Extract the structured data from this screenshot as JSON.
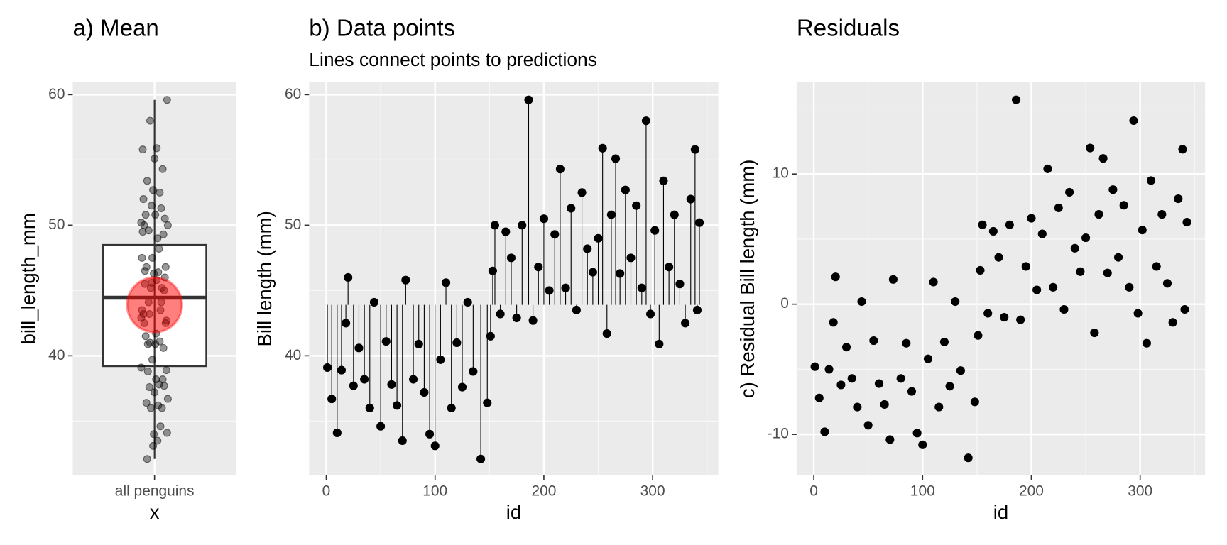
{
  "chart_data": [
    {
      "type": "box",
      "title": "a) Mean",
      "x_label": "x",
      "y_label": "bill_length_mm",
      "categories": [
        "all penguins"
      ],
      "values": [
        39.1,
        36.7,
        34.1,
        38.9,
        42.5,
        46.0,
        37.7,
        40.6,
        38.2,
        36.0,
        44.1,
        34.6,
        41.1,
        37.8,
        36.2,
        33.5,
        45.8,
        38.2,
        40.9,
        37.2,
        34.0,
        33.1,
        39.7,
        45.6,
        36.0,
        41.0,
        37.6,
        44.1,
        38.8,
        32.1,
        36.4,
        41.5,
        46.5,
        50.0,
        43.2,
        49.5,
        47.5,
        42.9,
        50.0,
        59.6,
        42.7,
        46.8,
        50.5,
        45.0,
        49.3,
        54.3,
        45.2,
        51.3,
        43.5,
        52.5,
        48.2,
        46.4,
        49.0,
        55.9,
        41.7,
        50.8,
        55.1,
        46.3,
        52.7,
        47.5,
        51.5,
        45.2,
        58.0,
        43.2,
        49.6,
        40.9,
        53.4,
        46.8,
        50.8,
        45.5,
        42.5,
        52.0,
        55.8,
        43.5,
        50.2
      ],
      "whisker_low": 32.1,
      "q1": 39.2,
      "median": 44.45,
      "q3": 48.5,
      "whisker_high": 59.6,
      "mean": 43.9,
      "point_color": "#000000",
      "mean_color": "#ff0000",
      "ylim": [
        30.84,
        60.96
      ],
      "yticks": [
        40,
        50,
        60
      ],
      "grid": true
    },
    {
      "type": "segments",
      "title": "b) Data points",
      "subtitle": "Lines connect points to predictions",
      "x_label": "id",
      "y_label": "Bill length (mm)",
      "reference": 43.9,
      "color": "#000000",
      "x": [
        1,
        5,
        10,
        14,
        18,
        20,
        25,
        30,
        35,
        40,
        44,
        50,
        55,
        60,
        65,
        70,
        73,
        80,
        85,
        90,
        95,
        100,
        105,
        110,
        115,
        120,
        125,
        130,
        135,
        142,
        148,
        151,
        153,
        155,
        160,
        165,
        170,
        175,
        180,
        186,
        190,
        195,
        200,
        205,
        210,
        215,
        220,
        225,
        230,
        235,
        240,
        245,
        250,
        254,
        258,
        262,
        266,
        270,
        275,
        280,
        285,
        290,
        294,
        298,
        302,
        306,
        310,
        315,
        320,
        325,
        330,
        335,
        339,
        341,
        343
      ],
      "values": [
        39.1,
        36.7,
        34.1,
        38.9,
        42.5,
        46.0,
        37.7,
        40.6,
        38.2,
        36.0,
        44.1,
        34.6,
        41.1,
        37.8,
        36.2,
        33.5,
        45.8,
        38.2,
        40.9,
        37.2,
        34.0,
        33.1,
        39.7,
        45.6,
        36.0,
        41.0,
        37.6,
        44.1,
        38.8,
        32.1,
        36.4,
        41.5,
        46.5,
        50.0,
        43.2,
        49.5,
        47.5,
        42.9,
        50.0,
        59.6,
        42.7,
        46.8,
        50.5,
        45.0,
        49.3,
        54.3,
        45.2,
        51.3,
        43.5,
        52.5,
        48.2,
        46.4,
        49.0,
        55.9,
        41.7,
        50.8,
        55.1,
        46.3,
        52.7,
        47.5,
        51.5,
        45.2,
        58.0,
        43.2,
        49.6,
        40.9,
        53.4,
        46.8,
        50.8,
        45.5,
        42.5,
        52.0,
        55.8,
        43.5,
        50.2
      ],
      "xlim": [
        -15.8,
        360.4
      ],
      "xticks": [
        0,
        100,
        200,
        300
      ],
      "ylim": [
        30.84,
        60.96
      ],
      "yticks": [
        40,
        50,
        60
      ],
      "grid": true
    },
    {
      "type": "scatter",
      "title": "Residuals",
      "x_label": "id",
      "y_label": "c) Residual Bill length (mm)",
      "color": "#000000",
      "x": [
        1,
        5,
        10,
        14,
        18,
        20,
        25,
        30,
        35,
        40,
        44,
        50,
        55,
        60,
        65,
        70,
        73,
        80,
        85,
        90,
        95,
        100,
        105,
        110,
        115,
        120,
        125,
        130,
        135,
        142,
        148,
        151,
        153,
        155,
        160,
        165,
        170,
        175,
        180,
        186,
        190,
        195,
        200,
        205,
        210,
        215,
        220,
        225,
        230,
        235,
        240,
        245,
        250,
        254,
        258,
        262,
        266,
        270,
        275,
        280,
        285,
        290,
        294,
        298,
        302,
        306,
        310,
        315,
        320,
        325,
        330,
        335,
        339,
        341,
        343
      ],
      "values": [
        -4.8,
        -7.2,
        -9.8,
        -5.0,
        -1.4,
        2.1,
        -6.2,
        -3.3,
        -5.7,
        -7.9,
        0.2,
        -9.3,
        -2.8,
        -6.1,
        -7.7,
        -10.4,
        1.9,
        -5.7,
        -3.0,
        -6.7,
        -9.9,
        -10.8,
        -4.2,
        1.7,
        -7.9,
        -2.9,
        -6.3,
        0.2,
        -5.1,
        -11.8,
        -7.5,
        -2.4,
        2.6,
        6.1,
        -0.7,
        5.6,
        3.6,
        -1.0,
        6.1,
        15.7,
        -1.2,
        2.9,
        6.6,
        1.1,
        5.4,
        10.4,
        1.3,
        7.4,
        -0.4,
        8.6,
        4.3,
        2.5,
        5.1,
        12.0,
        -2.2,
        6.9,
        11.2,
        2.4,
        8.8,
        3.6,
        7.6,
        1.3,
        14.1,
        -0.7,
        5.7,
        -3.0,
        9.5,
        2.9,
        6.9,
        1.6,
        -1.4,
        8.1,
        11.9,
        -0.4,
        6.3
      ],
      "xlim": [
        -15.8,
        359.7
      ],
      "xticks": [
        0,
        100,
        200,
        300
      ],
      "ylim": [
        -13.15,
        17.06
      ],
      "yticks": [
        -10,
        0,
        10
      ],
      "grid": true
    }
  ]
}
